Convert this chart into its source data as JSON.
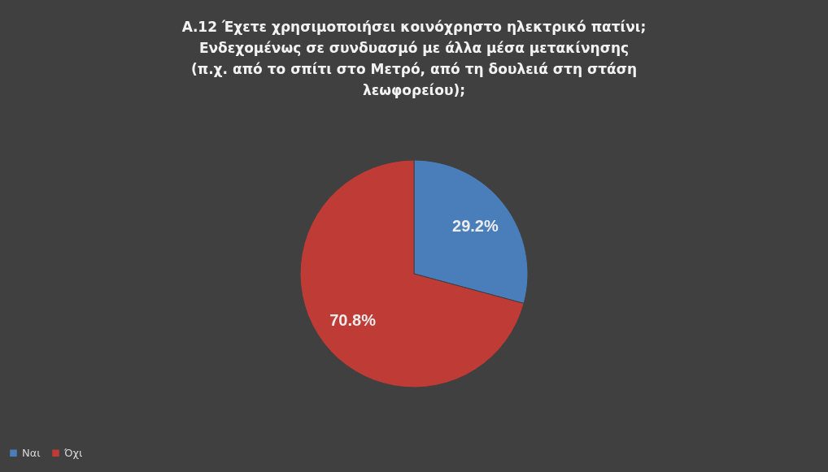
{
  "chart_data": {
    "type": "pie",
    "title": "Α.12 Έχετε χρησιμοποιήσει κοινόχρηστο ηλεκτρικό πατίνι;\nΕνδεχομένως σε συνδυασμό με άλλα μέσα μετακίνησης\n(π.χ. από το σπίτι στο Μετρό, από τη δουλειά στη στάση\nλεωφορείου);",
    "categories": [
      "Ναι",
      "Όχι"
    ],
    "values": [
      29.2,
      70.8
    ],
    "colors": [
      "#4a7ebb",
      "#be3b36"
    ],
    "value_labels": [
      "29.2%",
      "70.8%"
    ],
    "legend": "bottom"
  }
}
